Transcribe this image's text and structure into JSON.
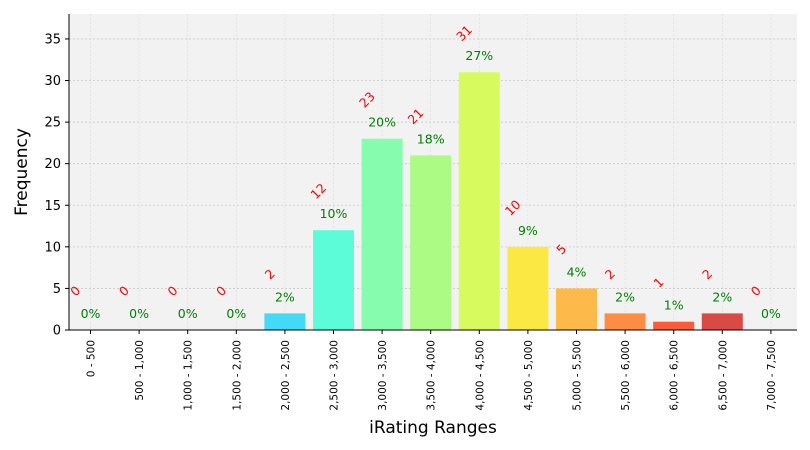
{
  "chart_data": {
    "type": "bar",
    "xlabel": "iRating Ranges",
    "ylabel": "Frequency",
    "ylim": [
      0,
      38
    ],
    "yticks": [
      0,
      5,
      10,
      15,
      20,
      25,
      30,
      35
    ],
    "grid": true,
    "categories": [
      "0 - 500",
      "500 - 1,000",
      "1,000 - 1,500",
      "1,500 - 2,000",
      "2,000 - 2,500",
      "2,500 - 3,000",
      "3,000 - 3,500",
      "3,500 - 4,000",
      "4,000 - 4,500",
      "4,500 - 5,000",
      "5,000 - 5,500",
      "5,500 - 6,000",
      "6,000 - 6,500",
      "6,500 - 7,000",
      "7,000 - 7,500"
    ],
    "values": [
      0,
      0,
      0,
      0,
      2,
      12,
      23,
      21,
      31,
      10,
      5,
      2,
      1,
      2,
      0
    ],
    "count_labels": [
      "0",
      "0",
      "0",
      "0",
      "2",
      "12",
      "23",
      "21",
      "31",
      "10",
      "5",
      "2",
      "1",
      "2",
      "0"
    ],
    "percent_labels": [
      "0%",
      "0%",
      "0%",
      "0%",
      "2%",
      "10%",
      "20%",
      "18%",
      "27%",
      "9%",
      "4%",
      "2%",
      "1%",
      "2%",
      "0%"
    ],
    "colors": [
      "#3b4cc0",
      "#4a62d8",
      "#4f7ff0",
      "#41a5f5",
      "#44d9f6",
      "#5dfcd8",
      "#86fdae",
      "#acfb85",
      "#d7fb5e",
      "#fbe842",
      "#fdba4a",
      "#fd8c45",
      "#fa5c3a",
      "#d94a46",
      "#b40426"
    ],
    "count_label_color": "#ff0000",
    "percent_label_color": "#008000",
    "plot_background": "#f2f2f2"
  }
}
